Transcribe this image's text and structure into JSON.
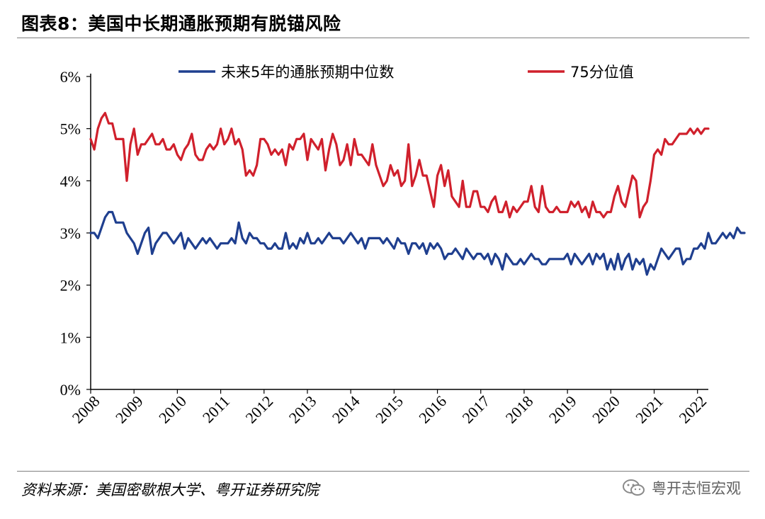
{
  "header": {
    "title": "图表8：美国中长期通胀预期有脱锚风险"
  },
  "footer": {
    "source": "资料来源：美国密歇根大学、粤开证券研究院",
    "watermark": "粤开志恒宏观"
  },
  "colors": {
    "median": "#1f3f8f",
    "p75": "#d0202c"
  },
  "chart_data": {
    "type": "line",
    "title": "",
    "xlabel": "",
    "ylabel": "",
    "x_tick_labels": [
      "2008",
      "2009",
      "2010",
      "2011",
      "2012",
      "2013",
      "2014",
      "2015",
      "2016",
      "2017",
      "2018",
      "2019",
      "2020",
      "2021",
      "2022"
    ],
    "y_tick_labels": [
      "0%",
      "1%",
      "2%",
      "3%",
      "4%",
      "5%",
      "6%"
    ],
    "xlim": [
      2008.0,
      2022.25
    ],
    "ylim": [
      0,
      6
    ],
    "legend_position": "top",
    "series": [
      {
        "name": "未来5年的通胀预期中位数",
        "color": "#1f3f8f",
        "x_start": 2008.0,
        "step_months": 1,
        "values": [
          3.0,
          3.0,
          2.9,
          3.1,
          3.3,
          3.4,
          3.4,
          3.2,
          3.2,
          3.2,
          3.0,
          2.9,
          2.8,
          2.6,
          2.8,
          3.0,
          3.1,
          2.6,
          2.8,
          2.9,
          3.0,
          3.0,
          2.9,
          2.8,
          2.9,
          3.0,
          2.7,
          2.9,
          2.8,
          2.7,
          2.8,
          2.9,
          2.8,
          2.9,
          2.8,
          2.7,
          2.8,
          2.8,
          2.8,
          2.9,
          2.8,
          3.2,
          2.9,
          2.8,
          3.0,
          2.9,
          2.9,
          2.8,
          2.8,
          2.7,
          2.7,
          2.8,
          2.7,
          2.7,
          3.0,
          2.7,
          2.8,
          2.7,
          2.9,
          2.8,
          3.0,
          2.8,
          2.8,
          2.9,
          2.8,
          2.9,
          3.0,
          2.9,
          2.9,
          2.9,
          2.8,
          2.9,
          3.0,
          2.9,
          2.8,
          2.9,
          2.7,
          2.9,
          2.9,
          2.9,
          2.9,
          2.8,
          2.9,
          2.8,
          2.7,
          2.9,
          2.8,
          2.8,
          2.6,
          2.8,
          2.8,
          2.7,
          2.8,
          2.6,
          2.8,
          2.7,
          2.8,
          2.7,
          2.5,
          2.6,
          2.6,
          2.7,
          2.6,
          2.5,
          2.7,
          2.6,
          2.5,
          2.6,
          2.6,
          2.5,
          2.6,
          2.4,
          2.6,
          2.5,
          2.3,
          2.6,
          2.5,
          2.4,
          2.4,
          2.5,
          2.4,
          2.5,
          2.6,
          2.5,
          2.5,
          2.4,
          2.4,
          2.5,
          2.5,
          2.5,
          2.5,
          2.5,
          2.6,
          2.4,
          2.6,
          2.5,
          2.4,
          2.5,
          2.6,
          2.4,
          2.6,
          2.5,
          2.6,
          2.3,
          2.5,
          2.3,
          2.6,
          2.3,
          2.5,
          2.6,
          2.3,
          2.5,
          2.4,
          2.5,
          2.2,
          2.4,
          2.3,
          2.5,
          2.7,
          2.6,
          2.5,
          2.6,
          2.7,
          2.7,
          2.4,
          2.5,
          2.5,
          2.7,
          2.7,
          2.8,
          2.7,
          3.0,
          2.8,
          2.8,
          2.9,
          3.0,
          2.9,
          3.0,
          2.9,
          3.1,
          3.0,
          3.0
        ]
      },
      {
        "name": "75分位值",
        "color": "#d0202c",
        "x_start": 2008.0,
        "step_months": 1,
        "values": [
          4.8,
          4.6,
          5.0,
          5.2,
          5.3,
          5.1,
          5.1,
          4.8,
          4.8,
          4.8,
          4.0,
          4.7,
          5.0,
          4.5,
          4.7,
          4.7,
          4.8,
          4.9,
          4.7,
          4.7,
          4.8,
          4.6,
          4.6,
          4.7,
          4.5,
          4.4,
          4.6,
          4.7,
          4.9,
          4.5,
          4.4,
          4.4,
          4.6,
          4.7,
          4.6,
          4.7,
          5.0,
          4.7,
          4.8,
          5.0,
          4.7,
          4.8,
          4.6,
          4.1,
          4.2,
          4.1,
          4.3,
          4.8,
          4.8,
          4.7,
          4.5,
          4.6,
          4.5,
          4.6,
          4.3,
          4.7,
          4.6,
          4.8,
          4.8,
          4.9,
          4.4,
          4.8,
          4.7,
          4.6,
          4.8,
          4.2,
          4.6,
          4.9,
          4.7,
          4.3,
          4.4,
          4.7,
          4.3,
          4.8,
          4.5,
          4.5,
          4.4,
          4.3,
          4.7,
          4.3,
          4.1,
          3.9,
          4.0,
          4.3,
          4.1,
          4.2,
          3.9,
          4.0,
          4.7,
          3.9,
          4.1,
          4.4,
          4.1,
          4.1,
          3.8,
          3.5,
          4.1,
          4.3,
          3.9,
          4.2,
          3.7,
          3.6,
          3.5,
          4.0,
          3.5,
          3.5,
          3.8,
          3.8,
          3.5,
          3.5,
          3.4,
          3.6,
          3.7,
          3.4,
          3.4,
          3.6,
          3.3,
          3.5,
          3.4,
          3.5,
          3.6,
          3.6,
          3.9,
          3.5,
          3.4,
          3.9,
          3.5,
          3.4,
          3.4,
          3.5,
          3.4,
          3.4,
          3.4,
          3.6,
          3.5,
          3.6,
          3.4,
          3.5,
          3.3,
          3.6,
          3.4,
          3.4,
          3.3,
          3.4,
          3.4,
          3.7,
          3.9,
          3.6,
          3.5,
          3.8,
          4.1,
          4.0,
          3.3,
          3.5,
          3.6,
          4.0,
          4.5,
          4.6,
          4.5,
          4.8,
          4.7,
          4.7,
          4.8,
          4.9,
          4.9,
          4.9,
          5.0,
          4.9,
          5.0,
          4.9,
          5.0,
          5.0
        ]
      }
    ]
  }
}
